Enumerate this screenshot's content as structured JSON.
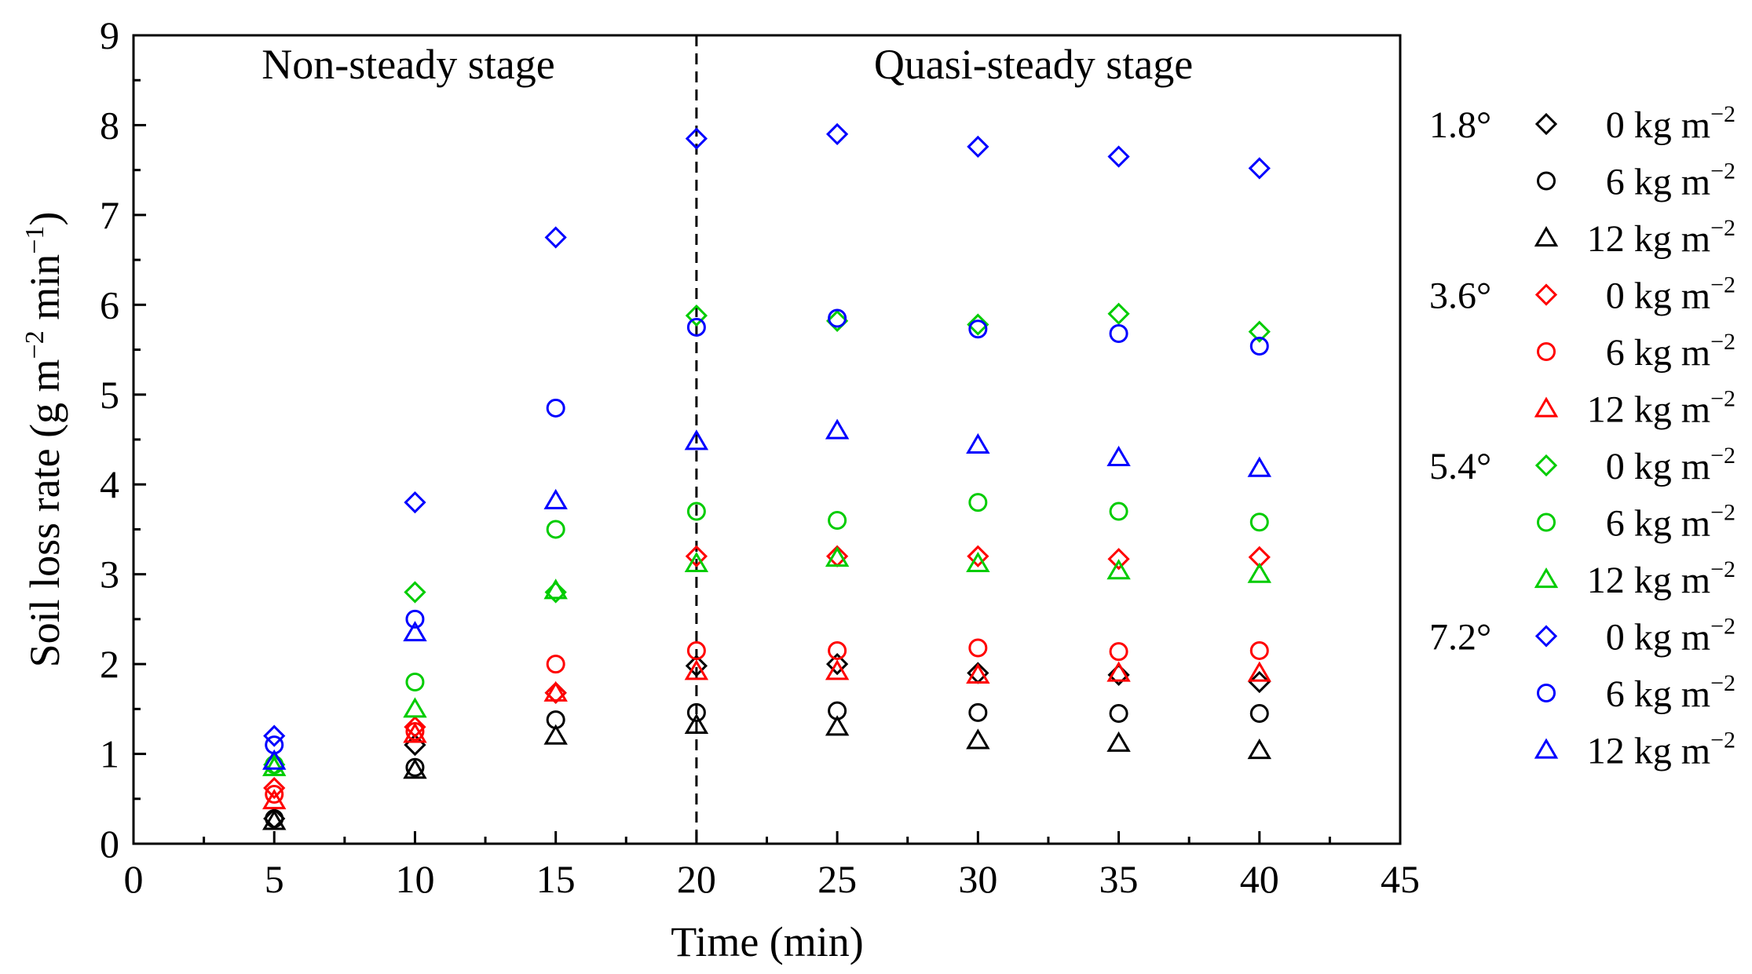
{
  "chart_data": {
    "type": "scatter",
    "xlabel": "Time (min)",
    "ylabel": {
      "main": "Soil loss rate  (g m",
      "sup1": "−2",
      "mid": " min",
      "sup2": "−1",
      "end": ")"
    },
    "xlim": [
      0,
      45
    ],
    "ylim": [
      0,
      9
    ],
    "xticks": [
      "0",
      "5",
      "10",
      "15",
      "20",
      "25",
      "30",
      "35",
      "40",
      "45"
    ],
    "yticks": [
      "0",
      "1",
      "2",
      "3",
      "4",
      "5",
      "6",
      "7",
      "8",
      "9"
    ],
    "divider_x": 20,
    "stage_labels": {
      "left": "Non-steady stage",
      "right": "Quasi-steady stage"
    },
    "x": [
      5,
      10,
      15,
      20,
      25,
      30,
      35,
      40
    ],
    "slope_colors": {
      "1.8°": "#000000",
      "3.6°": "#ff0000",
      "5.4°": "#00cc00",
      "7.2°": "#0000ff"
    },
    "series": [
      {
        "slope": "1.8°",
        "mulch": "0 kg m",
        "unit_sup": "−2",
        "marker": "diamond",
        "color": "#000000",
        "values": [
          0.28,
          1.1,
          1.68,
          1.98,
          2.0,
          1.9,
          1.88,
          1.8
        ]
      },
      {
        "slope": "1.8°",
        "mulch": "6 kg m",
        "unit_sup": "−2",
        "marker": "circle",
        "color": "#000000",
        "values": [
          0.28,
          0.85,
          1.38,
          1.46,
          1.48,
          1.46,
          1.45,
          1.45
        ]
      },
      {
        "slope": "1.8°",
        "mulch": "12 kg m",
        "unit_sup": "−2",
        "marker": "triangle",
        "color": "#000000",
        "values": [
          0.25,
          0.82,
          1.2,
          1.32,
          1.3,
          1.15,
          1.12,
          1.04
        ]
      },
      {
        "slope": "3.6°",
        "mulch": "0 kg m",
        "unit_sup": "−2",
        "marker": "diamond",
        "color": "#ff0000",
        "values": [
          0.62,
          1.3,
          1.68,
          3.2,
          3.2,
          3.2,
          3.17,
          3.19
        ]
      },
      {
        "slope": "3.6°",
        "mulch": "6 kg m",
        "unit_sup": "−2",
        "marker": "circle",
        "color": "#ff0000",
        "values": [
          0.55,
          1.25,
          2.0,
          2.15,
          2.15,
          2.18,
          2.14,
          2.15
        ]
      },
      {
        "slope": "3.6°",
        "mulch": "12 kg m",
        "unit_sup": "−2",
        "marker": "triangle",
        "color": "#ff0000",
        "values": [
          0.48,
          1.22,
          1.68,
          1.92,
          1.92,
          1.88,
          1.9,
          1.9
        ]
      },
      {
        "slope": "5.4°",
        "mulch": "0 kg m",
        "unit_sup": "−2",
        "marker": "diamond",
        "color": "#00cc00",
        "values": [
          0.88,
          2.8,
          2.8,
          5.88,
          5.82,
          5.78,
          5.9,
          5.7
        ]
      },
      {
        "slope": "5.4°",
        "mulch": "6 kg m",
        "unit_sup": "−2",
        "marker": "circle",
        "color": "#00cc00",
        "values": [
          0.88,
          1.8,
          3.5,
          3.7,
          3.6,
          3.8,
          3.7,
          3.58
        ]
      },
      {
        "slope": "5.4°",
        "mulch": "12 kg m",
        "unit_sup": "−2",
        "marker": "triangle",
        "color": "#00cc00",
        "values": [
          0.85,
          1.5,
          2.82,
          3.12,
          3.18,
          3.12,
          3.04,
          3.0
        ]
      },
      {
        "slope": "7.2°",
        "mulch": "0 kg m",
        "unit_sup": "−2",
        "marker": "diamond",
        "color": "#0000ff",
        "values": [
          1.2,
          3.8,
          6.75,
          7.85,
          7.9,
          7.76,
          7.65,
          7.52
        ]
      },
      {
        "slope": "7.2°",
        "mulch": "6 kg m",
        "unit_sup": "−2",
        "marker": "circle",
        "color": "#0000ff",
        "values": [
          1.1,
          2.5,
          4.85,
          5.75,
          5.85,
          5.73,
          5.68,
          5.54
        ]
      },
      {
        "slope": "7.2°",
        "mulch": "12 kg m",
        "unit_sup": "−2",
        "marker": "triangle",
        "color": "#0000ff",
        "values": [
          0.92,
          2.35,
          3.82,
          4.48,
          4.6,
          4.44,
          4.3,
          4.18
        ]
      }
    ],
    "legend_position": "right"
  }
}
